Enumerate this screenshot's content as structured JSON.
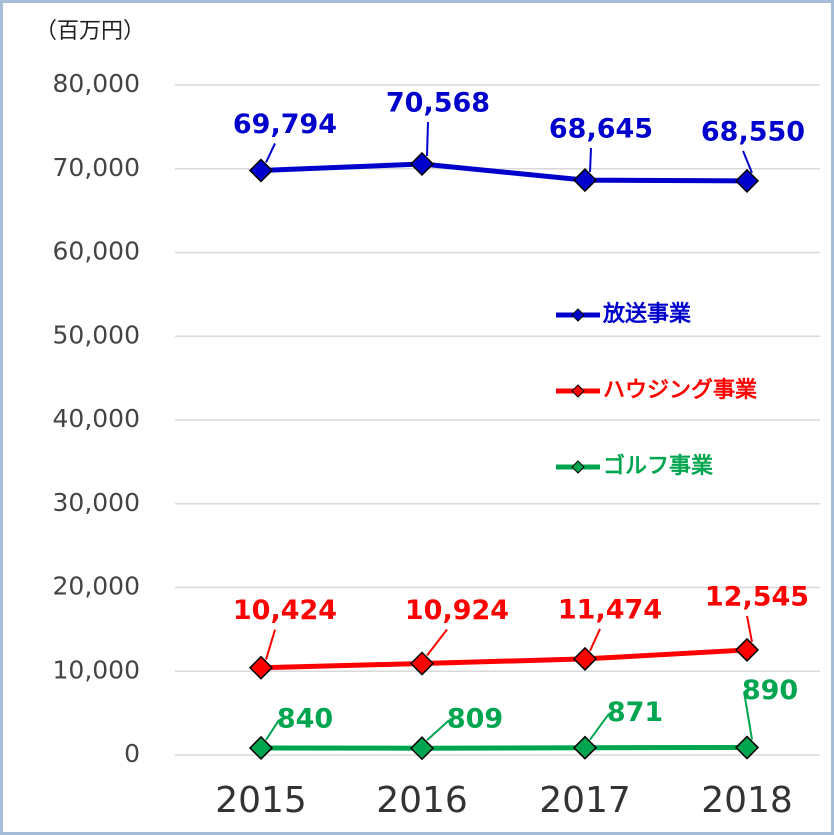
{
  "chart_data": {
    "type": "line",
    "y_axis_label": "（百万円）",
    "categories": [
      "2015",
      "2016",
      "2017",
      "2018"
    ],
    "series": [
      {
        "name": "放送事業",
        "color": "#0000cc",
        "values": [
          69794,
          70568,
          68645,
          68550
        ],
        "value_labels": [
          "69,794",
          "70,568",
          "68,645",
          "68,550"
        ]
      },
      {
        "name": "ハウジング事業",
        "color": "#ff0000",
        "values": [
          10424,
          10924,
          11474,
          12545
        ],
        "value_labels": [
          "10,424",
          "10,924",
          "11,474",
          "12,545"
        ]
      },
      {
        "name": "ゴルフ事業",
        "color": "#00a550",
        "values": [
          840,
          809,
          871,
          890
        ],
        "value_labels": [
          "840",
          "809",
          "871",
          "890"
        ]
      }
    ],
    "ylim": [
      0,
      80000
    ],
    "yticks": [
      0,
      {
        "value": 10000,
        "label": "10,000"
      },
      {
        "value": 20000,
        "label": "20,000"
      },
      {
        "value": 30000,
        "label": "30,000"
      },
      {
        "value": 40000,
        "label": "40,000"
      },
      {
        "value": 50000,
        "label": "50,000"
      },
      {
        "value": 60000,
        "label": "60,000"
      },
      {
        "value": 70000,
        "label": "70,000"
      },
      {
        "value": 80000,
        "label": "80,000"
      }
    ],
    "grid": true,
    "legend_position": "right"
  }
}
